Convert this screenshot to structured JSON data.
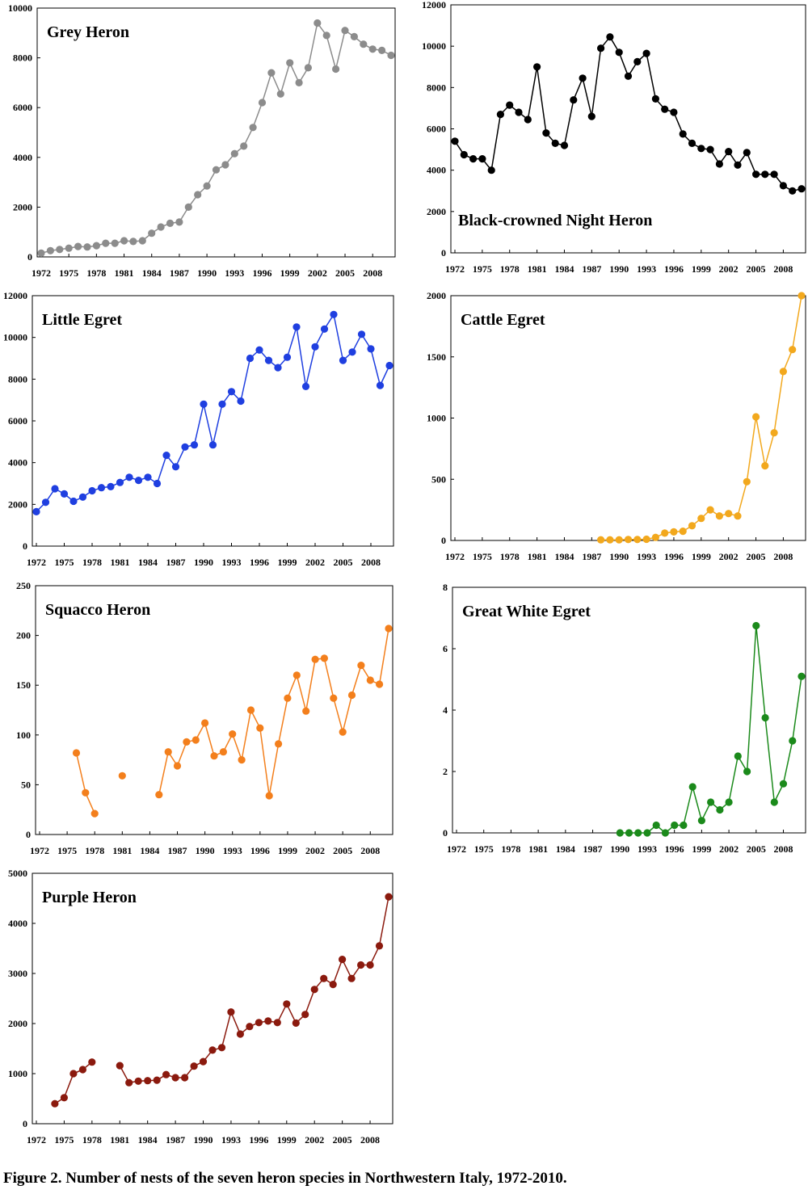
{
  "caption": "Figure 2. Number of nests of the seven heron species in Northwestern Italy, 1972-2010.",
  "x_tick_labels": [
    "1972",
    "1975",
    "1978",
    "1981",
    "1984",
    "1987",
    "1990",
    "1993",
    "1996",
    "1999",
    "2002",
    "2005",
    "2008"
  ],
  "chart_data": [
    {
      "type": "line",
      "title": "Grey Heron",
      "color": "#8c8c8c",
      "ylim": [
        0,
        10000
      ],
      "yticks": [
        0,
        2000,
        4000,
        6000,
        8000,
        10000
      ],
      "x_start": 1972,
      "values": [
        150,
        250,
        300,
        350,
        420,
        400,
        450,
        550,
        550,
        650,
        620,
        650,
        950,
        1200,
        1350,
        1400,
        2000,
        2500,
        2850,
        3500,
        3700,
        4150,
        4450,
        5200,
        6200,
        7400,
        6550,
        7800,
        7000,
        7600,
        9400,
        8900,
        7550,
        9100,
        8850,
        8550,
        8350,
        8300,
        8100
      ]
    },
    {
      "type": "line",
      "title": "Black-crowned Night Heron",
      "color": "#000000",
      "ylim": [
        0,
        12000
      ],
      "yticks": [
        0,
        2000,
        4000,
        6000,
        8000,
        10000,
        12000
      ],
      "x_start": 1972,
      "values": [
        5400,
        4750,
        4550,
        4550,
        4000,
        6700,
        7150,
        6800,
        6450,
        9000,
        5800,
        5300,
        5200,
        7400,
        8450,
        6600,
        9900,
        10450,
        9700,
        8550,
        9250,
        9650,
        7450,
        6950,
        6800,
        5750,
        5300,
        5050,
        5000,
        4300,
        4900,
        4250,
        4850,
        3800,
        3800,
        3800,
        3250,
        3000,
        3100
      ]
    },
    {
      "type": "line",
      "title": "Little Egret",
      "color": "#1f3fe0",
      "ylim": [
        0,
        12000
      ],
      "yticks": [
        0,
        2000,
        4000,
        6000,
        8000,
        10000,
        12000
      ],
      "x_start": 1972,
      "values": [
        1650,
        2100,
        2750,
        2500,
        2150,
        2350,
        2650,
        2800,
        2850,
        3050,
        3300,
        3150,
        3300,
        3000,
        4350,
        3800,
        4750,
        4850,
        6800,
        4850,
        6800,
        7400,
        6950,
        9000,
        9400,
        8900,
        8550,
        9050,
        10500,
        7650,
        9550,
        10400,
        11100,
        8900,
        9300,
        10150,
        9450,
        7700,
        8650
      ]
    },
    {
      "type": "line",
      "title": "Cattle Egret",
      "color": "#f2a81d",
      "ylim": [
        0,
        2000
      ],
      "yticks": [
        0,
        500,
        1000,
        1500,
        2000
      ],
      "x_start": 1972,
      "values": [
        null,
        null,
        null,
        null,
        null,
        null,
        null,
        null,
        null,
        null,
        null,
        null,
        null,
        null,
        null,
        null,
        5,
        5,
        5,
        8,
        8,
        10,
        25,
        60,
        70,
        75,
        120,
        180,
        250,
        200,
        220,
        200,
        480,
        1010,
        610,
        880,
        1380,
        1560,
        2000
      ]
    },
    {
      "type": "line",
      "title": "Squacco Heron",
      "color": "#f37f1c",
      "ylim": [
        0,
        250
      ],
      "yticks": [
        0,
        50,
        100,
        150,
        200,
        250
      ],
      "x_start": 1972,
      "values": [
        null,
        null,
        null,
        null,
        82,
        42,
        21,
        null,
        null,
        59,
        null,
        null,
        null,
        40,
        83,
        69,
        93,
        95,
        112,
        79,
        83,
        101,
        75,
        125,
        107,
        39,
        91,
        137,
        160,
        124,
        176,
        177,
        137,
        103,
        140,
        170,
        155,
        151,
        207
      ]
    },
    {
      "type": "line",
      "title": "Great White Egret",
      "color": "#1b8a1b",
      "ylim": [
        0,
        8
      ],
      "yticks": [
        0,
        2,
        4,
        6,
        8
      ],
      "x_start": 1972,
      "values": [
        null,
        null,
        null,
        null,
        null,
        null,
        null,
        null,
        null,
        null,
        null,
        null,
        null,
        null,
        null,
        null,
        null,
        null,
        0,
        0,
        0,
        0,
        0.25,
        0,
        0.25,
        0.25,
        1.5,
        0.4,
        1.0,
        0.75,
        1.0,
        2.5,
        2.0,
        6.75,
        3.75,
        1.0,
        1.6,
        3.0,
        5.1
      ]
    },
    {
      "type": "line",
      "title": "Purple Heron",
      "color": "#8b1a0e",
      "ylim": [
        0,
        5000
      ],
      "yticks": [
        0,
        1000,
        2000,
        3000,
        4000,
        5000
      ],
      "x_start": 1972,
      "values": [
        null,
        null,
        400,
        520,
        1000,
        1080,
        1230,
        null,
        null,
        1160,
        820,
        850,
        860,
        870,
        980,
        920,
        920,
        1150,
        1240,
        1470,
        1520,
        2230,
        1790,
        1940,
        2020,
        2050,
        2020,
        2390,
        2010,
        2180,
        2680,
        2900,
        2780,
        3280,
        2900,
        3170,
        3170,
        3550,
        4530
      ]
    }
  ]
}
